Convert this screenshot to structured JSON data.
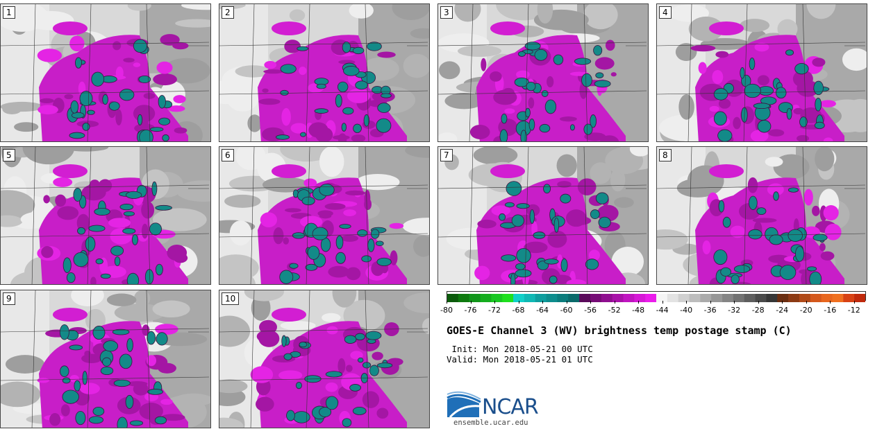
{
  "panels": [
    {
      "label": "1"
    },
    {
      "label": "2"
    },
    {
      "label": "3"
    },
    {
      "label": "4"
    },
    {
      "label": "5"
    },
    {
      "label": "6"
    },
    {
      "label": "7"
    },
    {
      "label": "8"
    },
    {
      "label": "9"
    },
    {
      "label": "10"
    }
  ],
  "colorbar": {
    "tick_labels": [
      "-80",
      "-76",
      "-72",
      "-68",
      "-64",
      "-60",
      "-56",
      "-52",
      "-48",
      "-44",
      "-40",
      "-36",
      "-32",
      "-28",
      "-24",
      "-20",
      "-16",
      "-12"
    ],
    "colors": [
      "#0b5b0b",
      "#0e7a0e",
      "#11951a",
      "#15ad1e",
      "#18c722",
      "#1ee01e",
      "#0fd0c8",
      "#0fb8b4",
      "#0e9e9e",
      "#0d8d8d",
      "#0b7c7c",
      "#0a6a6a",
      "#5a0a5a",
      "#760c76",
      "#8f0e8f",
      "#a811a8",
      "#c014c0",
      "#d618d6",
      "#ea1cea",
      "#f5f5f5",
      "#e3e3e3",
      "#d0d0d0",
      "#bdbdbd",
      "#aaaaaa",
      "#979797",
      "#858585",
      "#727272",
      "#5e5e5e",
      "#4a4a4a",
      "#363636",
      "#6a2d10",
      "#8c3a14",
      "#b04a18",
      "#d4581c",
      "#e8661e",
      "#f07020",
      "#d84214",
      "#c02a0c"
    ],
    "color_groups": {
      "greens": "-80 to -68",
      "teals": "-68 to -56",
      "magentas": "-56 to -44",
      "grays": "-44 to -24",
      "oranges": "-24 to -10"
    }
  },
  "title": "GOES-E Channel 3 (WV) brightness temp postage stamp (C)",
  "init": " Init: Mon 2018-05-21 00 UTC",
  "valid": "Valid: Mon 2018-05-21 01 UTC",
  "logo": {
    "text": "NCAR",
    "url": "ensemble.ucar.edu"
  }
}
